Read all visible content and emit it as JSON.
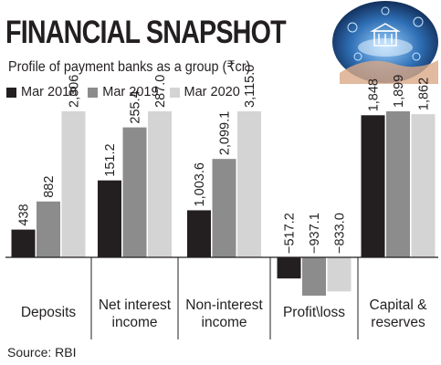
{
  "header": {
    "title": "FINANCIAL SNAPSHOT",
    "subtitle": "Profile of payment banks as a group (₹cr)"
  },
  "legend": [
    {
      "label": "Mar 2018",
      "color": "#231f20"
    },
    {
      "label": "Mar 2019",
      "color": "#8c8c8c"
    },
    {
      "label": "Mar 2020",
      "color": "#d4d4d4"
    }
  ],
  "footer": {
    "source": "Source: RBI"
  },
  "chart_data": {
    "type": "bar",
    "title": "FINANCIAL SNAPSHOT",
    "subtitle": "Profile of payment banks as a group (₹cr)",
    "categories": [
      [
        "Deposits"
      ],
      [
        "Net interest",
        "income"
      ],
      [
        "Non-interest",
        "income"
      ],
      [
        "Profit\\loss"
      ],
      [
        "Capital &",
        "reserves"
      ]
    ],
    "series": [
      {
        "name": "Mar 2018",
        "color": "#231f20",
        "values": [
          438,
          151.2,
          1003.6,
          -517.2,
          1848
        ]
      },
      {
        "name": "Mar 2019",
        "color": "#8c8c8c",
        "values": [
          882,
          255.4,
          2099.1,
          -937.1,
          1899
        ]
      },
      {
        "name": "Mar 2020",
        "color": "#d4d4d4",
        "values": [
          2306,
          287.0,
          3115.0,
          -833.0,
          1862
        ]
      }
    ],
    "value_labels": [
      [
        "438",
        "882",
        "2,306"
      ],
      [
        "151.2",
        "255.4",
        "287.0"
      ],
      [
        "1,003.6",
        "2,099.1",
        "3,115.0"
      ],
      [
        "−517.2",
        "−937.1",
        "−833.0"
      ],
      [
        "1,848",
        "1,899",
        "1,862"
      ]
    ],
    "panel_scales": [
      {
        "max": 2306
      },
      {
        "max": 287
      },
      {
        "max": 3115
      },
      {
        "max": 937.1
      },
      {
        "max": 1899
      }
    ],
    "xlabel": "",
    "ylabel": "",
    "legend_position": "top-left",
    "grid": false
  }
}
